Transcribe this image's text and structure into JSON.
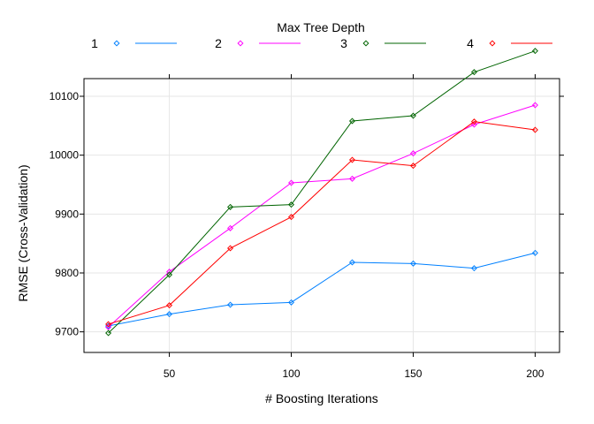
{
  "chart_data": {
    "type": "line",
    "xlabel": "# Boosting Iterations",
    "ylabel": "RMSE (Cross-Validation)",
    "xlim": [
      15,
      210
    ],
    "ylim": [
      9665,
      10130
    ],
    "x": [
      25,
      50,
      75,
      100,
      125,
      150,
      175,
      200
    ],
    "x_ticks": [
      50,
      100,
      150,
      200
    ],
    "y_ticks": [
      9700,
      9800,
      9900,
      10000,
      10100
    ],
    "grid": true,
    "legend": {
      "title": "Max Tree Depth",
      "placement": "top"
    },
    "series": [
      {
        "name": "1",
        "color": "#0080ff",
        "values": [
          9710,
          9730,
          9746,
          9750,
          9818,
          9816,
          9808,
          9834
        ]
      },
      {
        "name": "2",
        "color": "#ff00ff",
        "values": [
          9708,
          9802,
          9876,
          9953,
          9960,
          10003,
          10052,
          10085
        ]
      },
      {
        "name": "3",
        "color": "#006400",
        "values": [
          9698,
          9797,
          9912,
          9916,
          10058,
          10067,
          10141,
          10177
        ]
      },
      {
        "name": "4",
        "color": "#ff0000",
        "values": [
          9713,
          9745,
          9842,
          9895,
          9992,
          9982,
          10057,
          10043
        ]
      }
    ]
  }
}
